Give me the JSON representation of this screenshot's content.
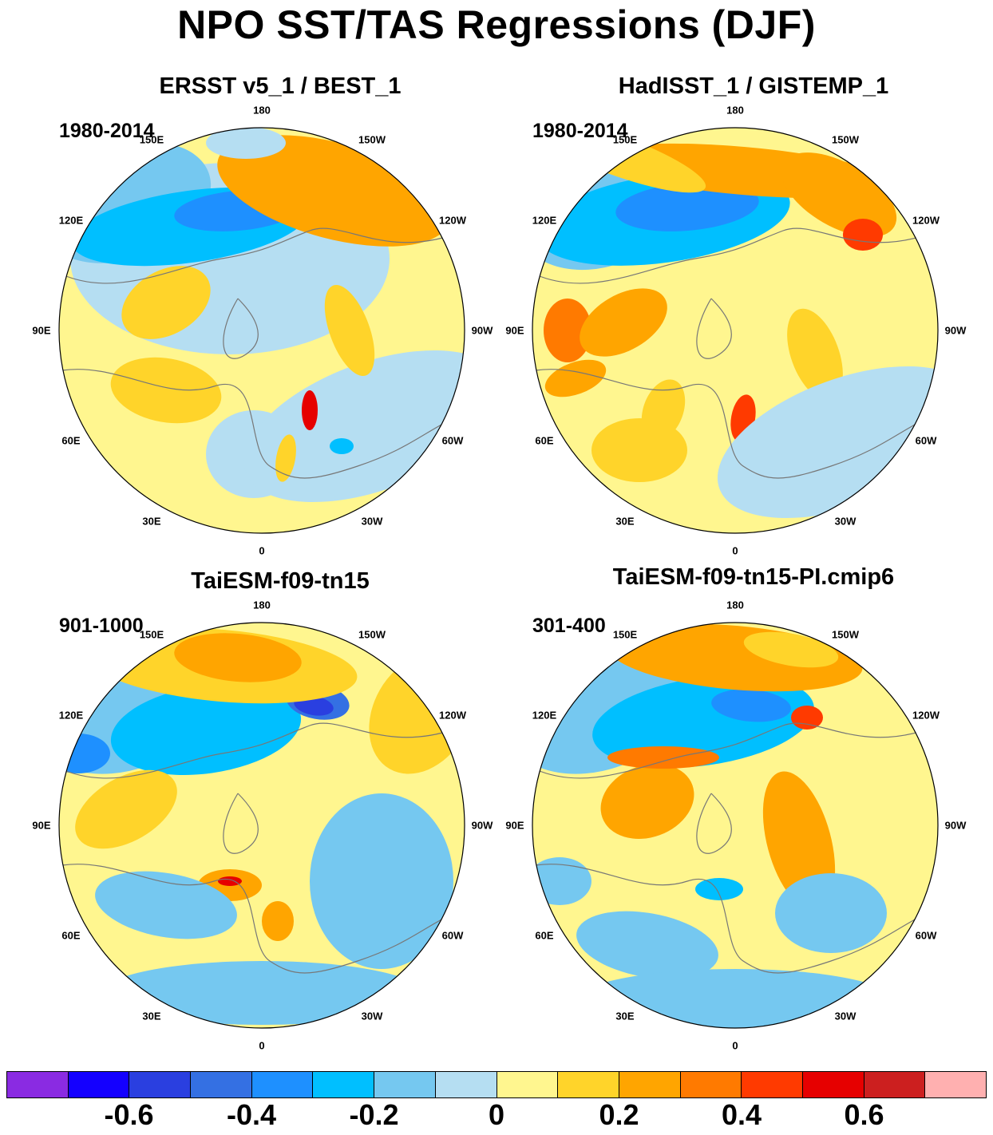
{
  "title": "NPO SST/TAS Regressions (DJF)",
  "lon_labels": [
    "180",
    "150E",
    "120E",
    "90E",
    "60E",
    "30E",
    "0",
    "30W",
    "60W",
    "90W",
    "120W",
    "150W"
  ],
  "panels": [
    {
      "title": "ERSST v5_1 / BEST_1",
      "period": "1980-2014"
    },
    {
      "title": "HadISST_1 / GISTEMP_1",
      "period": "1980-2014"
    },
    {
      "title": "TaiESM-f09-tn15",
      "period": "901-1000"
    },
    {
      "title": "TaiESM-f09-tn15-PI.cmip6",
      "period": "301-400"
    }
  ],
  "colorbar": {
    "colors": [
      "#8a2be2",
      "#1400ff",
      "#2a3fe0",
      "#3470e3",
      "#1e90ff",
      "#00bfff",
      "#75c8f0",
      "#b5def2",
      "#fff68f",
      "#ffd42a",
      "#ffa500",
      "#ff7a00",
      "#ff3a00",
      "#e60000",
      "#cc1f1f",
      "#ffb0b0"
    ],
    "labels": [
      "-0.6",
      "-0.4",
      "-0.2",
      "0",
      "0.2",
      "0.4",
      "0.6"
    ]
  },
  "colors": {
    "land": "#ffffff",
    "coast": "#777777"
  }
}
